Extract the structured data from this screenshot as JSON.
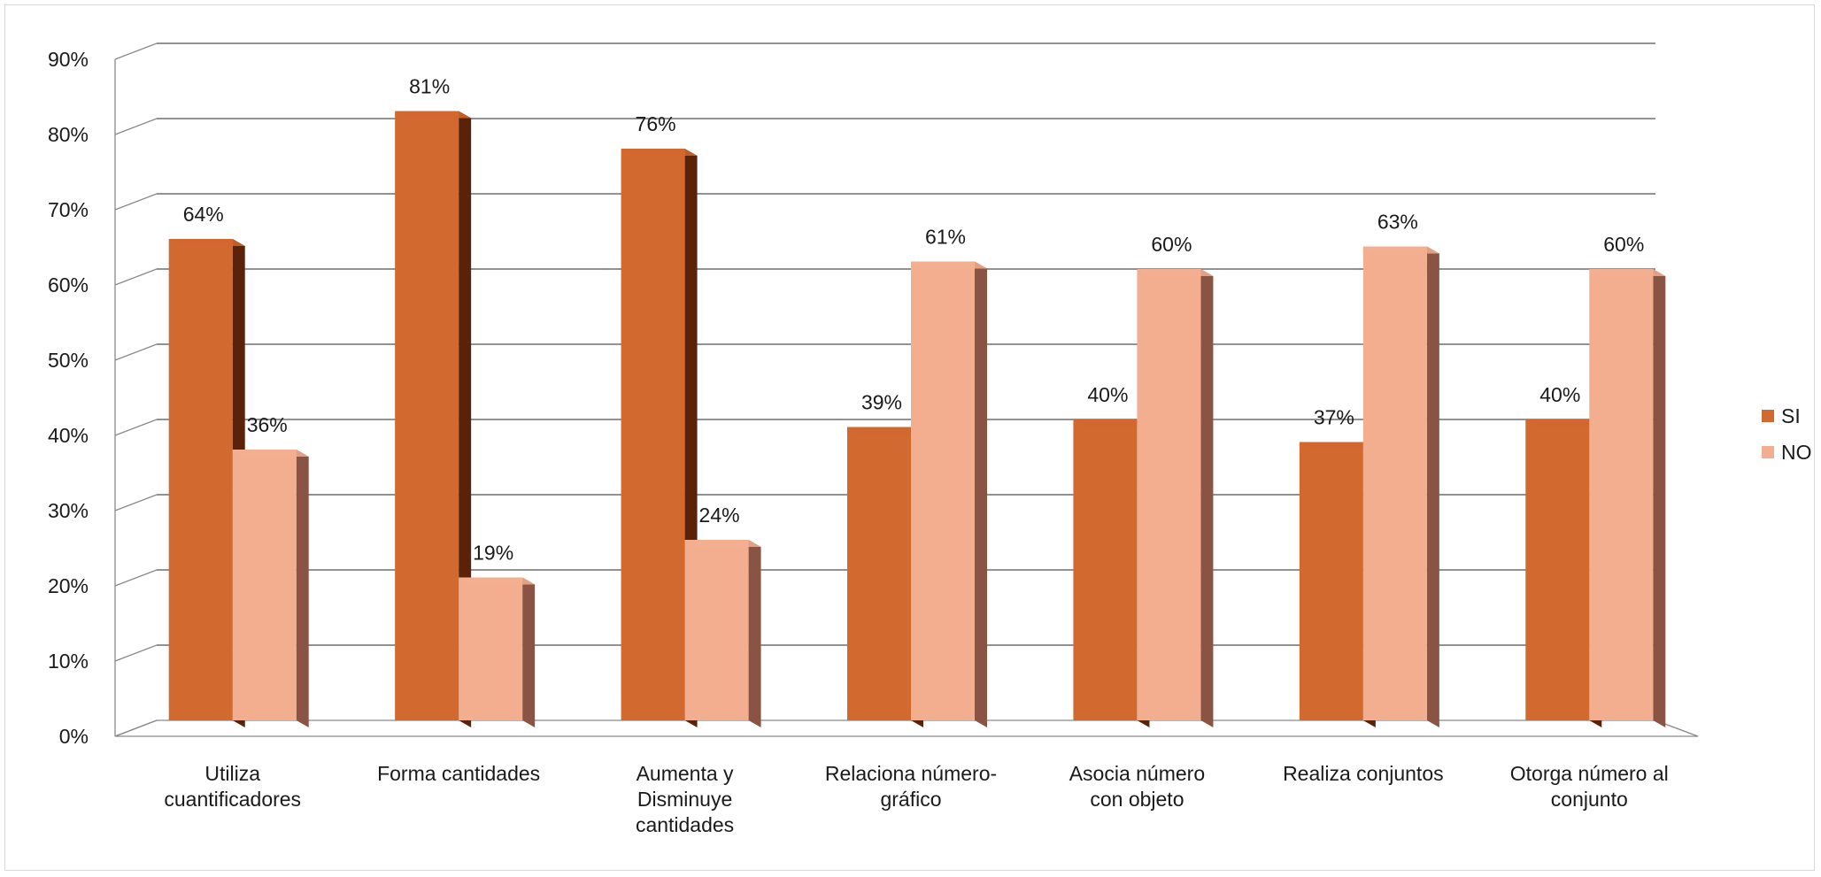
{
  "chart_data": {
    "type": "bar",
    "style": "3d-clustered-column",
    "categories": [
      [
        "Utiliza",
        "cuantificadores"
      ],
      [
        "Forma cantidades"
      ],
      [
        "Aumenta y",
        "Disminuye",
        "cantidades"
      ],
      [
        "Relaciona número-",
        "gráfico"
      ],
      [
        "Asocia número",
        "con objeto"
      ],
      [
        "Realiza conjuntos"
      ],
      [
        "Otorga número al",
        "conjunto"
      ]
    ],
    "series": [
      {
        "name": "SI",
        "color": "#d2692f",
        "side_color": "#5a2208",
        "values": [
          64,
          81,
          76,
          39,
          40,
          37,
          40
        ],
        "labels": [
          "64%",
          "81%",
          "76%",
          "39%",
          "40%",
          "37%",
          "40%"
        ]
      },
      {
        "name": "NO",
        "color": "#f3ae90",
        "side_color": "#8a5444",
        "values": [
          36,
          19,
          24,
          61,
          60,
          63,
          60
        ],
        "labels": [
          "36%",
          "19%",
          "24%",
          "61%",
          "60%",
          "63%",
          "60%"
        ]
      }
    ],
    "ylim": [
      0,
      90
    ],
    "y_ticks": [
      "0%",
      "10%",
      "20%",
      "30%",
      "40%",
      "50%",
      "60%",
      "70%",
      "80%",
      "90%"
    ],
    "grid": true,
    "legend_position": "right",
    "title": "",
    "xlabel": "",
    "ylabel": ""
  }
}
